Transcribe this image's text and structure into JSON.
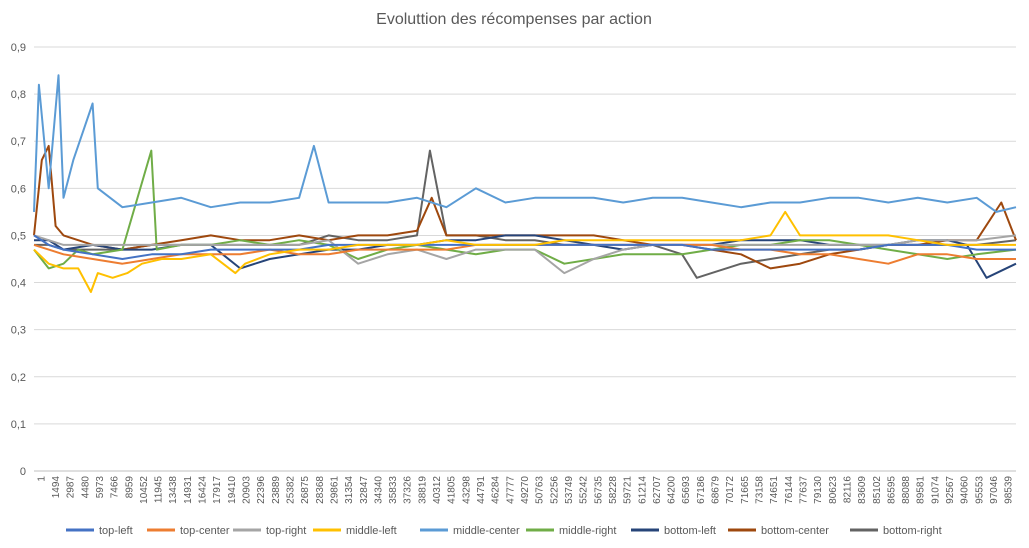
{
  "chart_data": {
    "type": "line",
    "title": "Evoluttion des récompenses par action",
    "xlabel": "",
    "ylabel": "",
    "ylim": [
      0,
      0.9
    ],
    "yticks": [
      "0",
      "0,1",
      "0,2",
      "0,3",
      "0,4",
      "0,5",
      "0,6",
      "0,7",
      "0,8",
      "0,9"
    ],
    "x_range": [
      1,
      100000
    ],
    "x_tick_labels": [
      "1",
      "1494",
      "2987",
      "4480",
      "5973",
      "7466",
      "8959",
      "10452",
      "11945",
      "13438",
      "14931",
      "16424",
      "17917",
      "19410",
      "20903",
      "22396",
      "23889",
      "25382",
      "26875",
      "28368",
      "29861",
      "31354",
      "32847",
      "34340",
      "35833",
      "37326",
      "38819",
      "40312",
      "41805",
      "43298",
      "44791",
      "46284",
      "47777",
      "49270",
      "50763",
      "52256",
      "53749",
      "55242",
      "56735",
      "58228",
      "59721",
      "61214",
      "62707",
      "64200",
      "65693",
      "67186",
      "68679",
      "70172",
      "71665",
      "73158",
      "74651",
      "76144",
      "77637",
      "79130",
      "80623",
      "82116",
      "83609",
      "85102",
      "86595",
      "88088",
      "89581",
      "91074",
      "92567",
      "94060",
      "95553",
      "97046",
      "98539"
    ],
    "grid": true,
    "legend_position": "bottom",
    "series": [
      {
        "name": "top-left",
        "color": "#4472c4",
        "x": [
          1,
          1500,
          3000,
          6000,
          9000,
          12000,
          15000,
          18000,
          21000,
          24000,
          27000,
          30000,
          33000,
          36000,
          39000,
          42000,
          45000,
          48000,
          51000,
          54000,
          57000,
          60000,
          63000,
          66000,
          69000,
          72000,
          75000,
          78000,
          81000,
          84000,
          87000,
          90000,
          93000,
          96000,
          100000
        ],
        "y": [
          0.5,
          0.48,
          0.47,
          0.46,
          0.45,
          0.46,
          0.46,
          0.47,
          0.47,
          0.47,
          0.47,
          0.48,
          0.48,
          0.48,
          0.48,
          0.48,
          0.48,
          0.48,
          0.48,
          0.48,
          0.48,
          0.48,
          0.48,
          0.48,
          0.47,
          0.47,
          0.47,
          0.47,
          0.47,
          0.47,
          0.48,
          0.48,
          0.48,
          0.47,
          0.47
        ]
      },
      {
        "name": "top-center",
        "color": "#ed7d31",
        "x": [
          1,
          1500,
          3000,
          6000,
          9000,
          12000,
          15000,
          18000,
          21000,
          24000,
          27000,
          30000,
          33000,
          36000,
          39000,
          42000,
          45000,
          48000,
          51000,
          54000,
          57000,
          60000,
          63000,
          66000,
          69000,
          72000,
          75000,
          78000,
          81000,
          84000,
          87000,
          90000,
          93000,
          96000,
          100000
        ],
        "y": [
          0.48,
          0.47,
          0.46,
          0.45,
          0.44,
          0.45,
          0.46,
          0.46,
          0.46,
          0.47,
          0.46,
          0.46,
          0.47,
          0.47,
          0.47,
          0.47,
          0.48,
          0.48,
          0.48,
          0.48,
          0.48,
          0.48,
          0.48,
          0.48,
          0.48,
          0.47,
          0.47,
          0.46,
          0.46,
          0.45,
          0.44,
          0.46,
          0.46,
          0.45,
          0.45
        ]
      },
      {
        "name": "top-right",
        "color": "#a5a5a5",
        "x": [
          1,
          1500,
          3000,
          6000,
          9000,
          12000,
          15000,
          18000,
          21000,
          24000,
          27000,
          30000,
          33000,
          36000,
          39000,
          42000,
          45000,
          48000,
          51000,
          54000,
          57000,
          60000,
          63000,
          66000,
          69000,
          72000,
          75000,
          78000,
          81000,
          84000,
          87000,
          90000,
          93000,
          96000,
          100000
        ],
        "y": [
          0.5,
          0.49,
          0.48,
          0.48,
          0.48,
          0.48,
          0.48,
          0.48,
          0.48,
          0.48,
          0.48,
          0.49,
          0.44,
          0.46,
          0.47,
          0.45,
          0.47,
          0.47,
          0.47,
          0.42,
          0.45,
          0.47,
          0.48,
          0.48,
          0.48,
          0.48,
          0.48,
          0.48,
          0.48,
          0.48,
          0.48,
          0.49,
          0.49,
          0.49,
          0.5
        ]
      },
      {
        "name": "middle-left",
        "color": "#ffc000",
        "x": [
          1,
          1500,
          3000,
          4500,
          5800,
          6500,
          8000,
          9500,
          11000,
          13000,
          15000,
          18000,
          20500,
          21500,
          24000,
          27000,
          30000,
          33000,
          36000,
          39000,
          42000,
          45000,
          48000,
          51000,
          54000,
          57000,
          60000,
          63000,
          66000,
          69000,
          72000,
          75000,
          76500,
          78000,
          81000,
          84000,
          87000,
          90000,
          93000,
          96000,
          100000
        ],
        "y": [
          0.47,
          0.44,
          0.43,
          0.43,
          0.38,
          0.42,
          0.41,
          0.42,
          0.44,
          0.45,
          0.45,
          0.46,
          0.42,
          0.44,
          0.46,
          0.47,
          0.47,
          0.48,
          0.48,
          0.48,
          0.49,
          0.48,
          0.48,
          0.48,
          0.49,
          0.49,
          0.49,
          0.49,
          0.49,
          0.49,
          0.49,
          0.5,
          0.55,
          0.5,
          0.5,
          0.5,
          0.5,
          0.49,
          0.48,
          0.48,
          0.48
        ]
      },
      {
        "name": "middle-center",
        "color": "#5b9bd5",
        "x": [
          1,
          500,
          1500,
          2500,
          3000,
          4000,
          5973,
          6500,
          9000,
          12000,
          15000,
          18000,
          21000,
          24000,
          27000,
          28500,
          30000,
          33000,
          36000,
          39000,
          42000,
          45000,
          48000,
          51000,
          54000,
          57000,
          60000,
          63000,
          66000,
          69000,
          72000,
          75000,
          78000,
          81000,
          84000,
          87000,
          90000,
          93000,
          96000,
          98000,
          100000
        ],
        "y": [
          0.55,
          0.82,
          0.6,
          0.84,
          0.58,
          0.66,
          0.78,
          0.6,
          0.56,
          0.57,
          0.58,
          0.56,
          0.57,
          0.57,
          0.58,
          0.69,
          0.57,
          0.57,
          0.57,
          0.58,
          0.56,
          0.6,
          0.57,
          0.58,
          0.58,
          0.58,
          0.57,
          0.58,
          0.58,
          0.57,
          0.56,
          0.57,
          0.57,
          0.58,
          0.58,
          0.57,
          0.58,
          0.57,
          0.58,
          0.55,
          0.56
        ]
      },
      {
        "name": "middle-right",
        "color": "#70ad47",
        "x": [
          1,
          1500,
          3000,
          4500,
          6000,
          9000,
          11945,
          12500,
          15000,
          18000,
          21000,
          24000,
          27000,
          30000,
          33000,
          36000,
          39000,
          42000,
          45000,
          48000,
          51000,
          54000,
          57000,
          60000,
          63000,
          66000,
          69000,
          72000,
          75000,
          78000,
          81000,
          84000,
          87000,
          90000,
          93000,
          96000,
          100000
        ],
        "y": [
          0.47,
          0.43,
          0.44,
          0.47,
          0.46,
          0.47,
          0.68,
          0.47,
          0.48,
          0.48,
          0.49,
          0.48,
          0.49,
          0.48,
          0.45,
          0.47,
          0.48,
          0.47,
          0.46,
          0.47,
          0.47,
          0.44,
          0.45,
          0.46,
          0.46,
          0.46,
          0.47,
          0.48,
          0.48,
          0.49,
          0.49,
          0.48,
          0.47,
          0.46,
          0.45,
          0.46,
          0.47
        ]
      },
      {
        "name": "bottom-left",
        "color": "#264478",
        "x": [
          1,
          1500,
          3000,
          6000,
          9000,
          12000,
          15000,
          18000,
          21000,
          24000,
          27000,
          30000,
          33000,
          36000,
          39000,
          42000,
          45000,
          48000,
          51000,
          54000,
          57000,
          60000,
          63000,
          66000,
          69000,
          72000,
          75000,
          78000,
          81000,
          84000,
          87000,
          90000,
          93000,
          95000,
          97000,
          100000
        ],
        "y": [
          0.49,
          0.49,
          0.47,
          0.48,
          0.47,
          0.47,
          0.48,
          0.48,
          0.43,
          0.45,
          0.46,
          0.47,
          0.47,
          0.48,
          0.48,
          0.49,
          0.49,
          0.5,
          0.5,
          0.49,
          0.48,
          0.47,
          0.48,
          0.48,
          0.48,
          0.49,
          0.49,
          0.49,
          0.48,
          0.48,
          0.48,
          0.49,
          0.49,
          0.48,
          0.41,
          0.44
        ]
      },
      {
        "name": "bottom-center",
        "color": "#9e480e",
        "x": [
          1,
          800,
          1494,
          2200,
          3000,
          6000,
          9000,
          12000,
          15000,
          18000,
          21000,
          24000,
          27000,
          30000,
          33000,
          36000,
          39000,
          40500,
          42000,
          45000,
          48000,
          51000,
          54000,
          57000,
          60000,
          63000,
          66000,
          69000,
          72000,
          75000,
          78000,
          81000,
          84000,
          87000,
          90000,
          93000,
          96000,
          98500,
          100000
        ],
        "y": [
          0.5,
          0.66,
          0.69,
          0.52,
          0.5,
          0.48,
          0.47,
          0.48,
          0.49,
          0.5,
          0.49,
          0.49,
          0.5,
          0.49,
          0.5,
          0.5,
          0.51,
          0.58,
          0.5,
          0.5,
          0.5,
          0.5,
          0.5,
          0.5,
          0.49,
          0.48,
          0.48,
          0.47,
          0.46,
          0.43,
          0.44,
          0.46,
          0.47,
          0.48,
          0.48,
          0.49,
          0.49,
          0.57,
          0.49
        ]
      },
      {
        "name": "bottom-right",
        "color": "#636363",
        "x": [
          1,
          1500,
          3000,
          6000,
          9000,
          12000,
          15000,
          18000,
          21000,
          24000,
          27000,
          30000,
          33000,
          36000,
          39000,
          40312,
          42000,
          45000,
          48000,
          51000,
          54000,
          57000,
          60000,
          63000,
          66000,
          67500,
          69000,
          72000,
          75000,
          78000,
          81000,
          84000,
          87000,
          90000,
          93000,
          96000,
          100000
        ],
        "y": [
          0.48,
          0.48,
          0.47,
          0.47,
          0.47,
          0.48,
          0.48,
          0.48,
          0.48,
          0.48,
          0.48,
          0.5,
          0.49,
          0.49,
          0.5,
          0.68,
          0.5,
          0.5,
          0.49,
          0.49,
          0.48,
          0.48,
          0.48,
          0.48,
          0.46,
          0.41,
          0.42,
          0.44,
          0.45,
          0.46,
          0.47,
          0.47,
          0.48,
          0.48,
          0.48,
          0.48,
          0.49
        ]
      }
    ]
  }
}
